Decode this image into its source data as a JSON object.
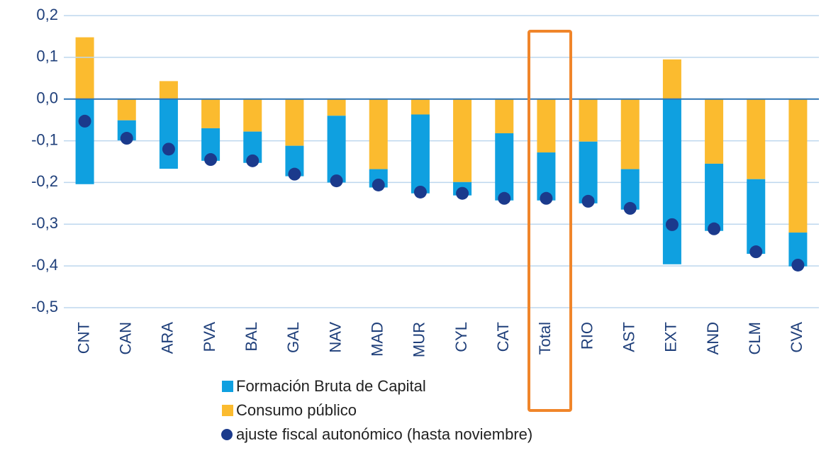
{
  "chart_data": {
    "type": "bar",
    "stacked": true,
    "categories": [
      "CNT",
      "CAN",
      "ARA",
      "PVA",
      "BAL",
      "GAL",
      "NAV",
      "MAD",
      "MUR",
      "CYL",
      "CAT",
      "Total",
      "RIO",
      "AST",
      "EXT",
      "AND",
      "CLM",
      "CVA"
    ],
    "series": [
      {
        "name": "Formación Bruta de Capital",
        "color": "#0fa0e0",
        "values": [
          -0.204,
          -0.048,
          -0.167,
          -0.078,
          -0.075,
          -0.073,
          -0.16,
          -0.044,
          -0.189,
          -0.032,
          -0.161,
          -0.115,
          -0.148,
          -0.097,
          -0.396,
          -0.161,
          -0.179,
          -0.081
        ]
      },
      {
        "name": "Consumo público",
        "color": "#fbbb2f",
        "values": [
          0.148,
          -0.051,
          0.043,
          -0.07,
          -0.078,
          -0.112,
          -0.04,
          -0.168,
          -0.037,
          -0.199,
          -0.082,
          -0.128,
          -0.102,
          -0.168,
          0.095,
          -0.155,
          -0.192,
          -0.32
        ]
      },
      {
        "name": "ajuste fiscal autonómico (hasta noviembre)",
        "color": "#1b3a8c",
        "type": "scatter",
        "values": [
          -0.053,
          -0.094,
          -0.12,
          -0.145,
          -0.148,
          -0.18,
          -0.196,
          -0.206,
          -0.223,
          -0.226,
          -0.238,
          -0.238,
          -0.245,
          -0.262,
          -0.301,
          -0.311,
          -0.366,
          -0.398
        ]
      }
    ],
    "ylim": [
      -0.5,
      0.2
    ],
    "yticks": [
      {
        "value": -0.5,
        "label": "-0,5"
      },
      {
        "value": -0.4,
        "label": "-0,4"
      },
      {
        "value": -0.3,
        "label": "-0,3"
      },
      {
        "value": -0.2,
        "label": "-0,2"
      },
      {
        "value": -0.1,
        "label": "-0,1"
      },
      {
        "value": 0,
        "label": "0,0"
      },
      {
        "value": 0.1,
        "label": "0,1"
      },
      {
        "value": 0.2,
        "label": "0,2"
      }
    ],
    "grid": true
  }
}
